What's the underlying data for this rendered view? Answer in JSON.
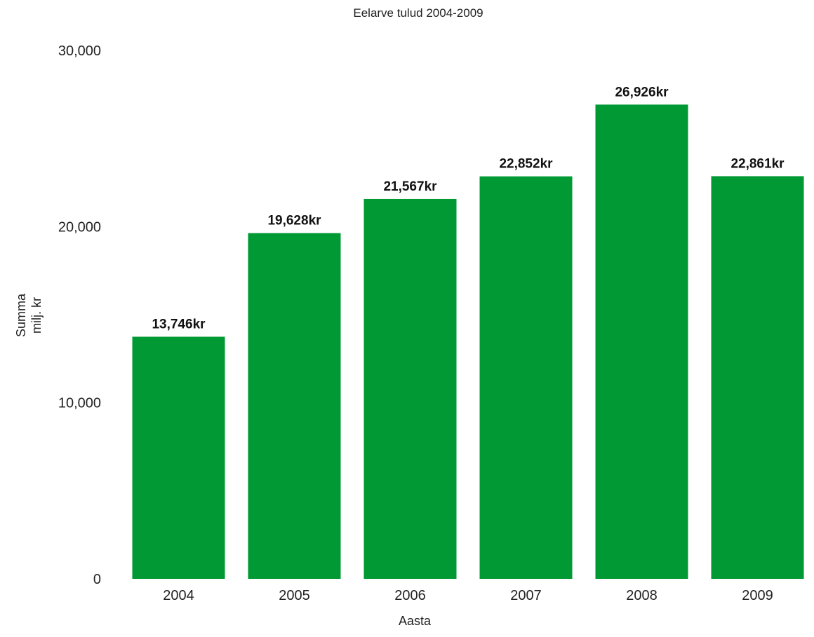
{
  "chart_data": {
    "type": "bar",
    "title": "Eelarve tulud 2004-2009",
    "xlabel": "Aasta",
    "ylabel": [
      "Summa",
      "milj. kr"
    ],
    "categories": [
      "2004",
      "2005",
      "2006",
      "2007",
      "2008",
      "2009"
    ],
    "values": [
      13746,
      19628,
      21567,
      22852,
      26926,
      22861
    ],
    "data_labels": [
      "13,746kr",
      "19,628kr",
      "21,567kr",
      "22,852kr",
      "26,926kr",
      "22,861kr"
    ],
    "ylim": [
      0,
      30000
    ],
    "yticks": [
      0,
      10000,
      20000,
      30000
    ],
    "ytick_labels": [
      "0",
      "10,000",
      "20,000",
      "30,000"
    ],
    "grid": false,
    "legend": "none",
    "bar_color": "#009933"
  }
}
